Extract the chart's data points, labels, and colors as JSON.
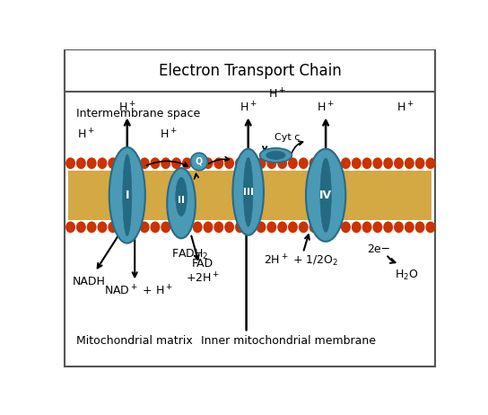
{
  "title": "Electron Transport Chain",
  "background_color": "#ffffff",
  "border_color": "#555555",
  "membrane_color_lipid": "#d4a843",
  "membrane_color_head": "#cc3300",
  "protein_color": "#4a9ab5",
  "protein_outline": "#2a6a85",
  "protein_dark": "#236a82",
  "text_color": "#000000",
  "labels": {
    "title": "Electron Transport Chain",
    "intermembrane": "Intermembrane space",
    "matrix": "Mitochondrial matrix",
    "inner_membrane": "Inner mitochondrial membrane",
    "NADH": "NADH",
    "NAD": "NAD$^+$ + H$^+$",
    "FADH2": "FADH$_2$",
    "FAD": "FAD\n+2H$^+$",
    "2H_O2": "2H$^+$ + 1/2O$_2$",
    "H2O": "H$_2$O",
    "2e": "2e−",
    "Cyt_c": "Cyt c"
  }
}
